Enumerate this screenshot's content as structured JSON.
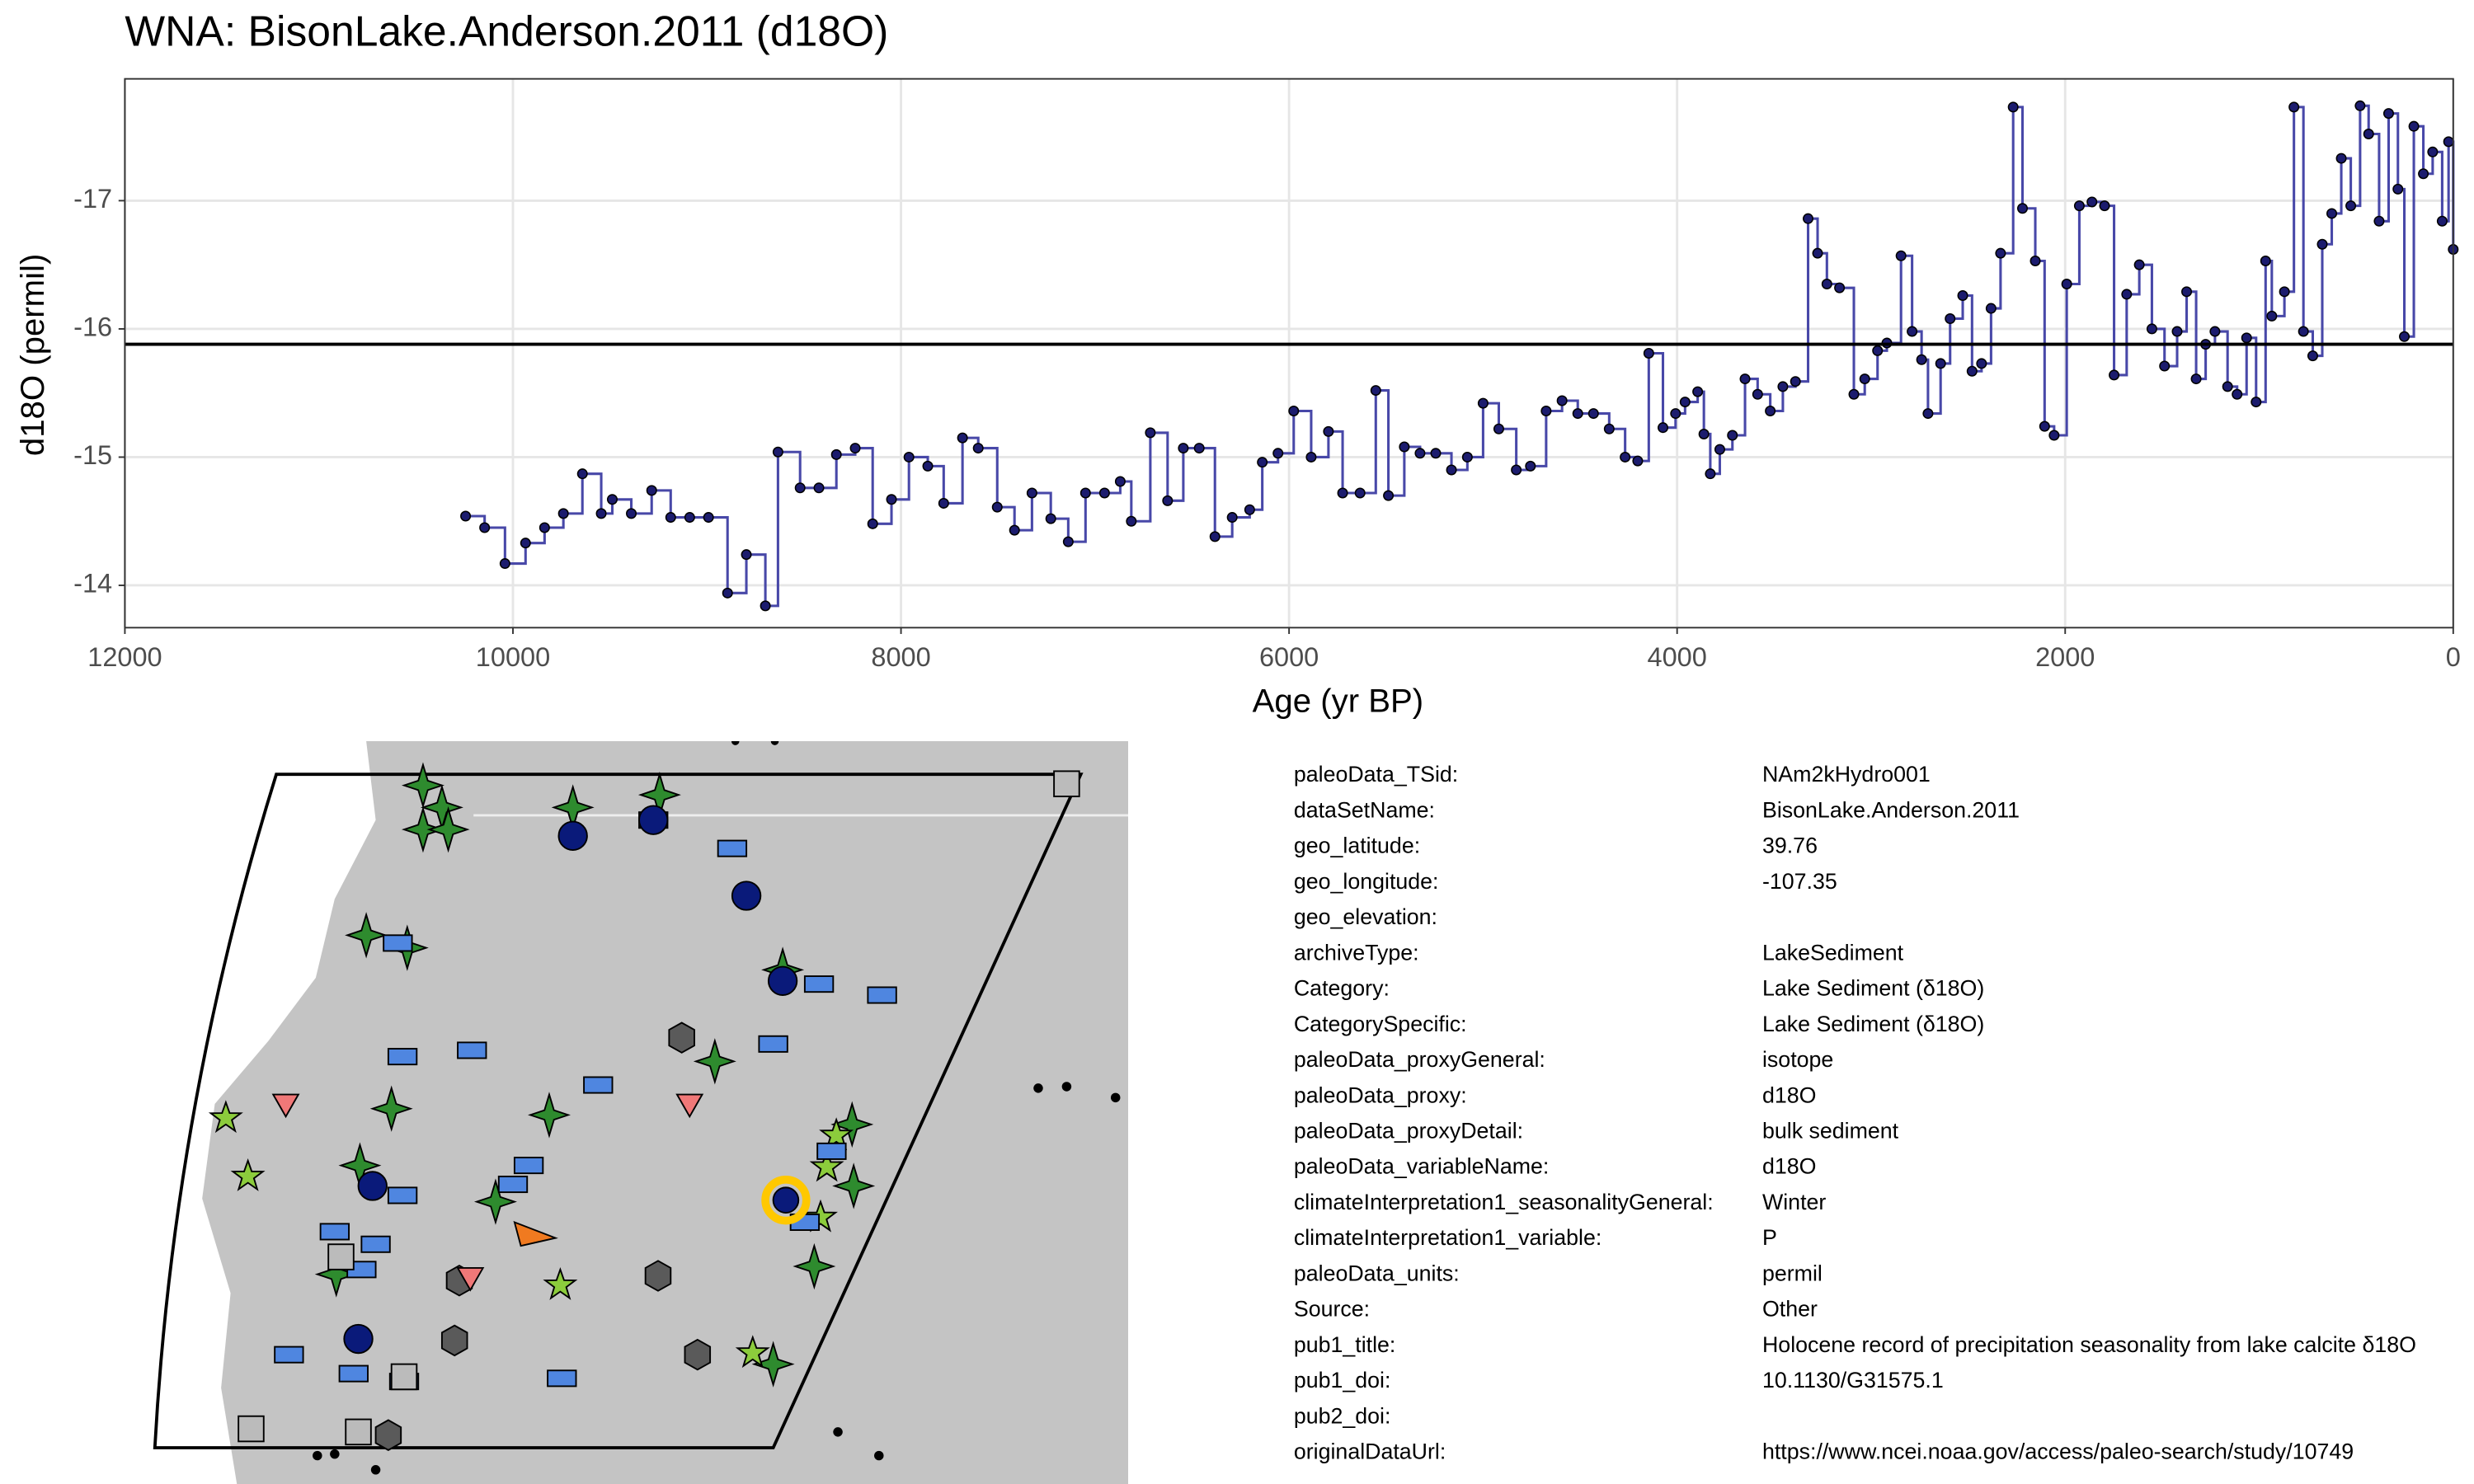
{
  "chart_data": {
    "type": "line",
    "step": true,
    "title": "WNA: BisonLake.Anderson.2011 (d18O)",
    "xlabel": "Age (yr BP)",
    "ylabel": "d18O (permil)",
    "color": "#4848a8",
    "marker_color": "#1c1c6e",
    "grid": true,
    "xlim": [
      12000,
      0
    ],
    "ylim": [
      -13.67,
      -17.95
    ],
    "xticks": [
      12000,
      10000,
      8000,
      6000,
      4000,
      2000,
      0
    ],
    "yticks": [
      -17,
      -16,
      -15,
      -14
    ],
    "reference_line": -15.88,
    "x": [
      10244,
      10146,
      10041,
      9935,
      9837,
      9740,
      9642,
      9545,
      9488,
      9390,
      9285,
      9187,
      9089,
      8992,
      8894,
      8797,
      8699,
      8634,
      8520,
      8423,
      8333,
      8236,
      8146,
      8049,
      7959,
      7862,
      7780,
      7683,
      7602,
      7504,
      7415,
      7325,
      7228,
      7138,
      7049,
      6951,
      6870,
      6813,
      6715,
      6626,
      6545,
      6463,
      6382,
      6293,
      6203,
      6138,
      6057,
      5976,
      5886,
      5797,
      5724,
      5634,
      5553,
      5488,
      5406,
      5325,
      5244,
      5163,
      5081,
      5000,
      4919,
      4829,
      4756,
      4675,
      4593,
      4512,
      4431,
      4350,
      4268,
      4203,
      4146,
      4073,
      4008,
      3959,
      3894,
      3862,
      3829,
      3780,
      3715,
      3650,
      3585,
      3520,
      3455,
      3390,
      3325,
      3276,
      3228,
      3163,
      3089,
      3033,
      2967,
      2919,
      2846,
      2789,
      2740,
      2707,
      2642,
      2593,
      2528,
      2480,
      2431,
      2382,
      2333,
      2268,
      2220,
      2154,
      2106,
      2057,
      1992,
      1927,
      1862,
      1797,
      1748,
      1683,
      1618,
      1553,
      1488,
      1423,
      1374,
      1325,
      1276,
      1228,
      1163,
      1114,
      1065,
      1016,
      967,
      935,
      870,
      821,
      772,
      724,
      675,
      626,
      577,
      528,
      480,
      436,
      382,
      333,
      285,
      252,
      203,
      154,
      106,
      57,
      24,
      0
    ],
    "values": [
      -14.54,
      -14.45,
      -14.17,
      -14.33,
      -14.45,
      -14.56,
      -14.87,
      -14.56,
      -14.67,
      -14.56,
      -14.74,
      -14.53,
      -14.53,
      -14.53,
      -13.94,
      -14.24,
      -13.84,
      -15.04,
      -14.76,
      -14.76,
      -15.02,
      -15.07,
      -14.48,
      -14.67,
      -15.0,
      -14.93,
      -14.64,
      -15.15,
      -15.07,
      -14.61,
      -14.43,
      -14.72,
      -14.52,
      -14.34,
      -14.72,
      -14.72,
      -14.81,
      -14.5,
      -15.19,
      -14.66,
      -15.07,
      -15.07,
      -14.38,
      -14.53,
      -14.59,
      -14.96,
      -15.03,
      -15.36,
      -15.0,
      -15.2,
      -14.72,
      -14.72,
      -15.52,
      -14.7,
      -15.08,
      -15.03,
      -15.03,
      -14.9,
      -15.0,
      -15.42,
      -15.22,
      -14.9,
      -14.93,
      -15.36,
      -15.44,
      -15.34,
      -15.34,
      -15.22,
      -15.0,
      -14.97,
      -15.81,
      -15.23,
      -15.34,
      -15.43,
      -15.51,
      -15.18,
      -14.87,
      -15.06,
      -15.17,
      -15.61,
      -15.49,
      -15.36,
      -15.55,
      -15.59,
      -16.86,
      -16.59,
      -16.35,
      -16.32,
      -15.49,
      -15.61,
      -15.83,
      -15.89,
      -16.57,
      -15.98,
      -15.76,
      -15.34,
      -15.73,
      -16.08,
      -16.26,
      -15.67,
      -15.73,
      -16.16,
      -16.59,
      -17.73,
      -16.94,
      -16.53,
      -15.24,
      -15.17,
      -16.35,
      -16.96,
      -16.99,
      -16.96,
      -15.64,
      -16.27,
      -16.5,
      -16.0,
      -15.71,
      -15.98,
      -16.29,
      -15.61,
      -15.88,
      -15.98,
      -15.55,
      -15.49,
      -15.93,
      -15.43,
      -16.53,
      -16.1,
      -16.29,
      -17.73,
      -15.98,
      -15.79,
      -16.66,
      -16.9,
      -17.33,
      -16.96,
      -17.74,
      -17.52,
      -16.84,
      -17.68,
      -17.09,
      -15.94,
      -17.58,
      -17.21,
      -17.38,
      -16.84,
      -17.46,
      -16.62
    ]
  },
  "info_table": {
    "rows": [
      [
        "paleoData_TSid:",
        "NAm2kHydro001"
      ],
      [
        "dataSetName:",
        "BisonLake.Anderson.2011"
      ],
      [
        "geo_latitude:",
        "39.76"
      ],
      [
        "geo_longitude:",
        "-107.35"
      ],
      [
        "geo_elevation:",
        null
      ],
      [
        "archiveType:",
        "LakeSediment"
      ],
      [
        "Category:",
        "Lake Sediment (δ18O)"
      ],
      [
        "CategorySpecific:",
        "Lake Sediment (δ18O)"
      ],
      [
        "paleoData_proxyGeneral:",
        "isotope"
      ],
      [
        "paleoData_proxy:",
        "d18O"
      ],
      [
        "paleoData_proxyDetail:",
        "bulk sediment"
      ],
      [
        "paleoData_variableName:",
        "d18O"
      ],
      [
        "climateInterpretation1_seasonalityGeneral:",
        "Winter"
      ],
      [
        "climateInterpretation1_variable:",
        "P"
      ],
      [
        "paleoData_units:",
        "permil"
      ],
      [
        "Source:",
        "Other"
      ],
      [
        "pub1_title:",
        "Holocene record of precipitation seasonality from lake calcite δ18O"
      ],
      [
        "pub1_doi:",
        "10.1130/G31575.1"
      ],
      [
        "pub2_doi:",
        null
      ],
      [
        "originalDataUrl:",
        "https://www.ncei.noaa.gov/access/paleo-search/study/10749"
      ]
    ]
  }
}
